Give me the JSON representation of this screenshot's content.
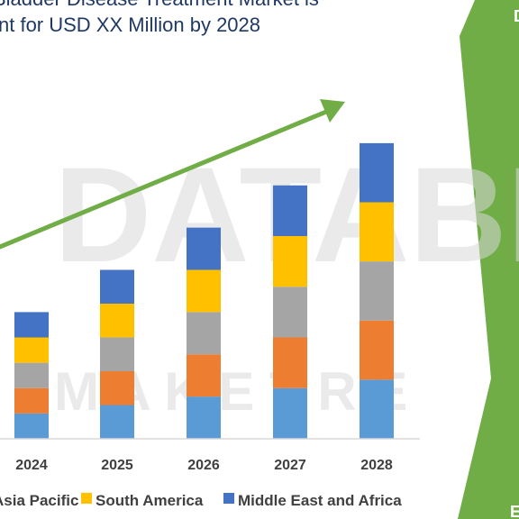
{
  "title_lines": [
    "Bladder Disease Treatment Market is",
    "nt for USD XX Million by 2028"
  ],
  "watermark": {
    "top": "DATABR",
    "bottom": "M A K E T R E"
  },
  "corner_glyphs": {
    "top": "D",
    "bottom": "E"
  },
  "colors": {
    "accent_green": "#70ad47",
    "title": "#1f3864"
  },
  "chart_data": {
    "type": "bar",
    "stacked": true,
    "categories": [
      "2024",
      "2025",
      "2026",
      "2027",
      "2028"
    ],
    "series": [
      {
        "name": "",
        "color": "#5b9bd5",
        "values": [
          6,
          8,
          10,
          12,
          14
        ]
      },
      {
        "name": "",
        "color": "#ed7d31",
        "values": [
          6,
          8,
          10,
          12,
          14
        ]
      },
      {
        "name": "Asia Pacific",
        "color": "#a5a5a5",
        "values": [
          6,
          8,
          10,
          12,
          14
        ]
      },
      {
        "name": "South America",
        "color": "#ffc000",
        "values": [
          6,
          8,
          10,
          12,
          14
        ]
      },
      {
        "name": "Middle East and Africa",
        "color": "#4472c4",
        "values": [
          6,
          8,
          10,
          12,
          14
        ]
      }
    ],
    "ylim": [
      0,
      80
    ],
    "trend_arrow": true,
    "grid": false,
    "legend_position": "bottom"
  }
}
